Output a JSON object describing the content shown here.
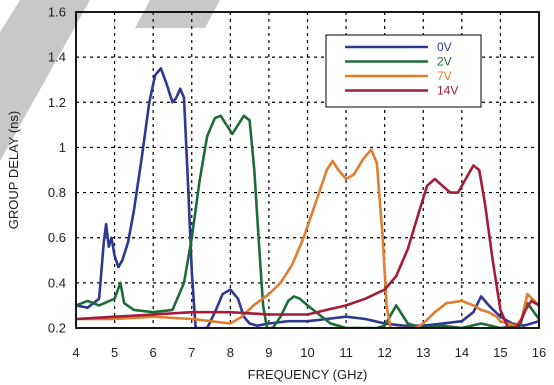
{
  "chart_data": {
    "type": "line",
    "title": "",
    "xlabel": "FREQUENCY (GHz)",
    "ylabel": "GROUP DELAY (ns)",
    "xlim": [
      4,
      16
    ],
    "ylim": [
      0.2,
      1.6
    ],
    "xticks": [
      "4",
      "5",
      "6",
      "7",
      "8",
      "9",
      "10",
      "11",
      "12",
      "13",
      "14",
      "15",
      "16"
    ],
    "yticks": [
      "0.2",
      "0.4",
      "0.6",
      "0.8",
      "1",
      "1.2",
      "1.4",
      "1.6"
    ],
    "grid": true,
    "legend_position": "top-right",
    "series": [
      {
        "name": "0V",
        "color": "#2b3990",
        "x": [
          4.0,
          4.3,
          4.6,
          4.72,
          4.78,
          4.85,
          4.92,
          5.0,
          5.1,
          5.2,
          5.35,
          5.5,
          5.7,
          5.9,
          6.05,
          6.2,
          6.35,
          6.5,
          6.6,
          6.7,
          6.8,
          6.9,
          7.0,
          7.1,
          7.2,
          7.4,
          7.6,
          7.8,
          8.0,
          8.2,
          8.35,
          8.5,
          8.7,
          9.0,
          9.5,
          10.0,
          10.5,
          11.0,
          11.5,
          12.0,
          12.5,
          13.0,
          13.5,
          14.0,
          14.3,
          14.5,
          14.7,
          15.0,
          15.3,
          15.6,
          16.0
        ],
        "y": [
          0.3,
          0.29,
          0.33,
          0.58,
          0.66,
          0.56,
          0.6,
          0.52,
          0.47,
          0.5,
          0.58,
          0.72,
          0.95,
          1.2,
          1.32,
          1.35,
          1.28,
          1.2,
          1.22,
          1.26,
          1.22,
          0.85,
          0.45,
          0.2,
          0.2,
          0.2,
          0.27,
          0.35,
          0.37,
          0.33,
          0.25,
          0.22,
          0.21,
          0.22,
          0.23,
          0.23,
          0.24,
          0.25,
          0.24,
          0.22,
          0.21,
          0.21,
          0.22,
          0.23,
          0.27,
          0.34,
          0.3,
          0.25,
          0.22,
          0.21,
          0.23
        ]
      },
      {
        "name": "2V",
        "color": "#1e6b3a",
        "x": [
          4.0,
          4.3,
          4.6,
          5.0,
          5.15,
          5.25,
          5.5,
          6.0,
          6.5,
          6.8,
          7.0,
          7.2,
          7.4,
          7.6,
          7.75,
          7.9,
          8.05,
          8.2,
          8.35,
          8.5,
          8.62,
          8.75,
          8.85,
          8.95,
          9.1,
          9.3,
          9.5,
          9.65,
          9.8,
          10.0,
          10.3,
          10.6,
          11.0,
          11.5,
          11.8,
          12.0,
          12.3,
          12.6,
          13.0,
          13.5,
          14.0,
          14.5,
          15.0,
          15.5,
          15.7,
          16.0
        ],
        "y": [
          0.3,
          0.32,
          0.3,
          0.33,
          0.4,
          0.31,
          0.28,
          0.27,
          0.28,
          0.4,
          0.6,
          0.85,
          1.05,
          1.13,
          1.14,
          1.1,
          1.06,
          1.1,
          1.14,
          1.12,
          0.9,
          0.55,
          0.3,
          0.2,
          0.2,
          0.25,
          0.32,
          0.34,
          0.33,
          0.3,
          0.26,
          0.22,
          0.2,
          0.2,
          0.2,
          0.21,
          0.3,
          0.22,
          0.2,
          0.21,
          0.2,
          0.22,
          0.2,
          0.21,
          0.31,
          0.24
        ]
      },
      {
        "name": "7V",
        "color": "#e07d2e",
        "x": [
          4.0,
          5.0,
          6.0,
          7.0,
          7.5,
          8.0,
          8.3,
          8.6,
          9.0,
          9.3,
          9.6,
          9.9,
          10.2,
          10.5,
          10.65,
          10.8,
          11.0,
          11.2,
          11.45,
          11.65,
          11.8,
          11.95,
          12.05,
          12.15,
          12.3,
          12.5,
          12.8,
          13.0,
          13.3,
          13.6,
          14.0,
          14.3,
          14.5,
          14.7,
          14.9,
          15.0,
          15.2,
          15.4,
          15.55,
          15.7,
          16.0
        ],
        "y": [
          0.24,
          0.24,
          0.25,
          0.24,
          0.23,
          0.22,
          0.25,
          0.3,
          0.35,
          0.4,
          0.48,
          0.6,
          0.75,
          0.9,
          0.94,
          0.9,
          0.86,
          0.88,
          0.95,
          0.99,
          0.93,
          0.6,
          0.3,
          0.2,
          0.2,
          0.2,
          0.2,
          0.22,
          0.27,
          0.31,
          0.32,
          0.3,
          0.28,
          0.27,
          0.25,
          0.23,
          0.22,
          0.21,
          0.24,
          0.35,
          0.3
        ]
      },
      {
        "name": "14V",
        "color": "#a31c3a",
        "x": [
          4.0,
          5.0,
          6.0,
          7.0,
          8.0,
          9.0,
          10.0,
          10.5,
          11.0,
          11.5,
          12.0,
          12.3,
          12.6,
          12.9,
          13.1,
          13.3,
          13.5,
          13.7,
          13.9,
          14.1,
          14.3,
          14.45,
          14.6,
          14.8,
          15.0,
          15.2,
          15.35,
          15.5,
          15.65,
          15.8,
          16.0
        ],
        "y": [
          0.24,
          0.25,
          0.26,
          0.27,
          0.27,
          0.26,
          0.26,
          0.28,
          0.3,
          0.33,
          0.37,
          0.43,
          0.55,
          0.72,
          0.83,
          0.86,
          0.83,
          0.8,
          0.8,
          0.86,
          0.92,
          0.9,
          0.75,
          0.5,
          0.28,
          0.2,
          0.2,
          0.22,
          0.28,
          0.32,
          0.3
        ]
      }
    ]
  }
}
